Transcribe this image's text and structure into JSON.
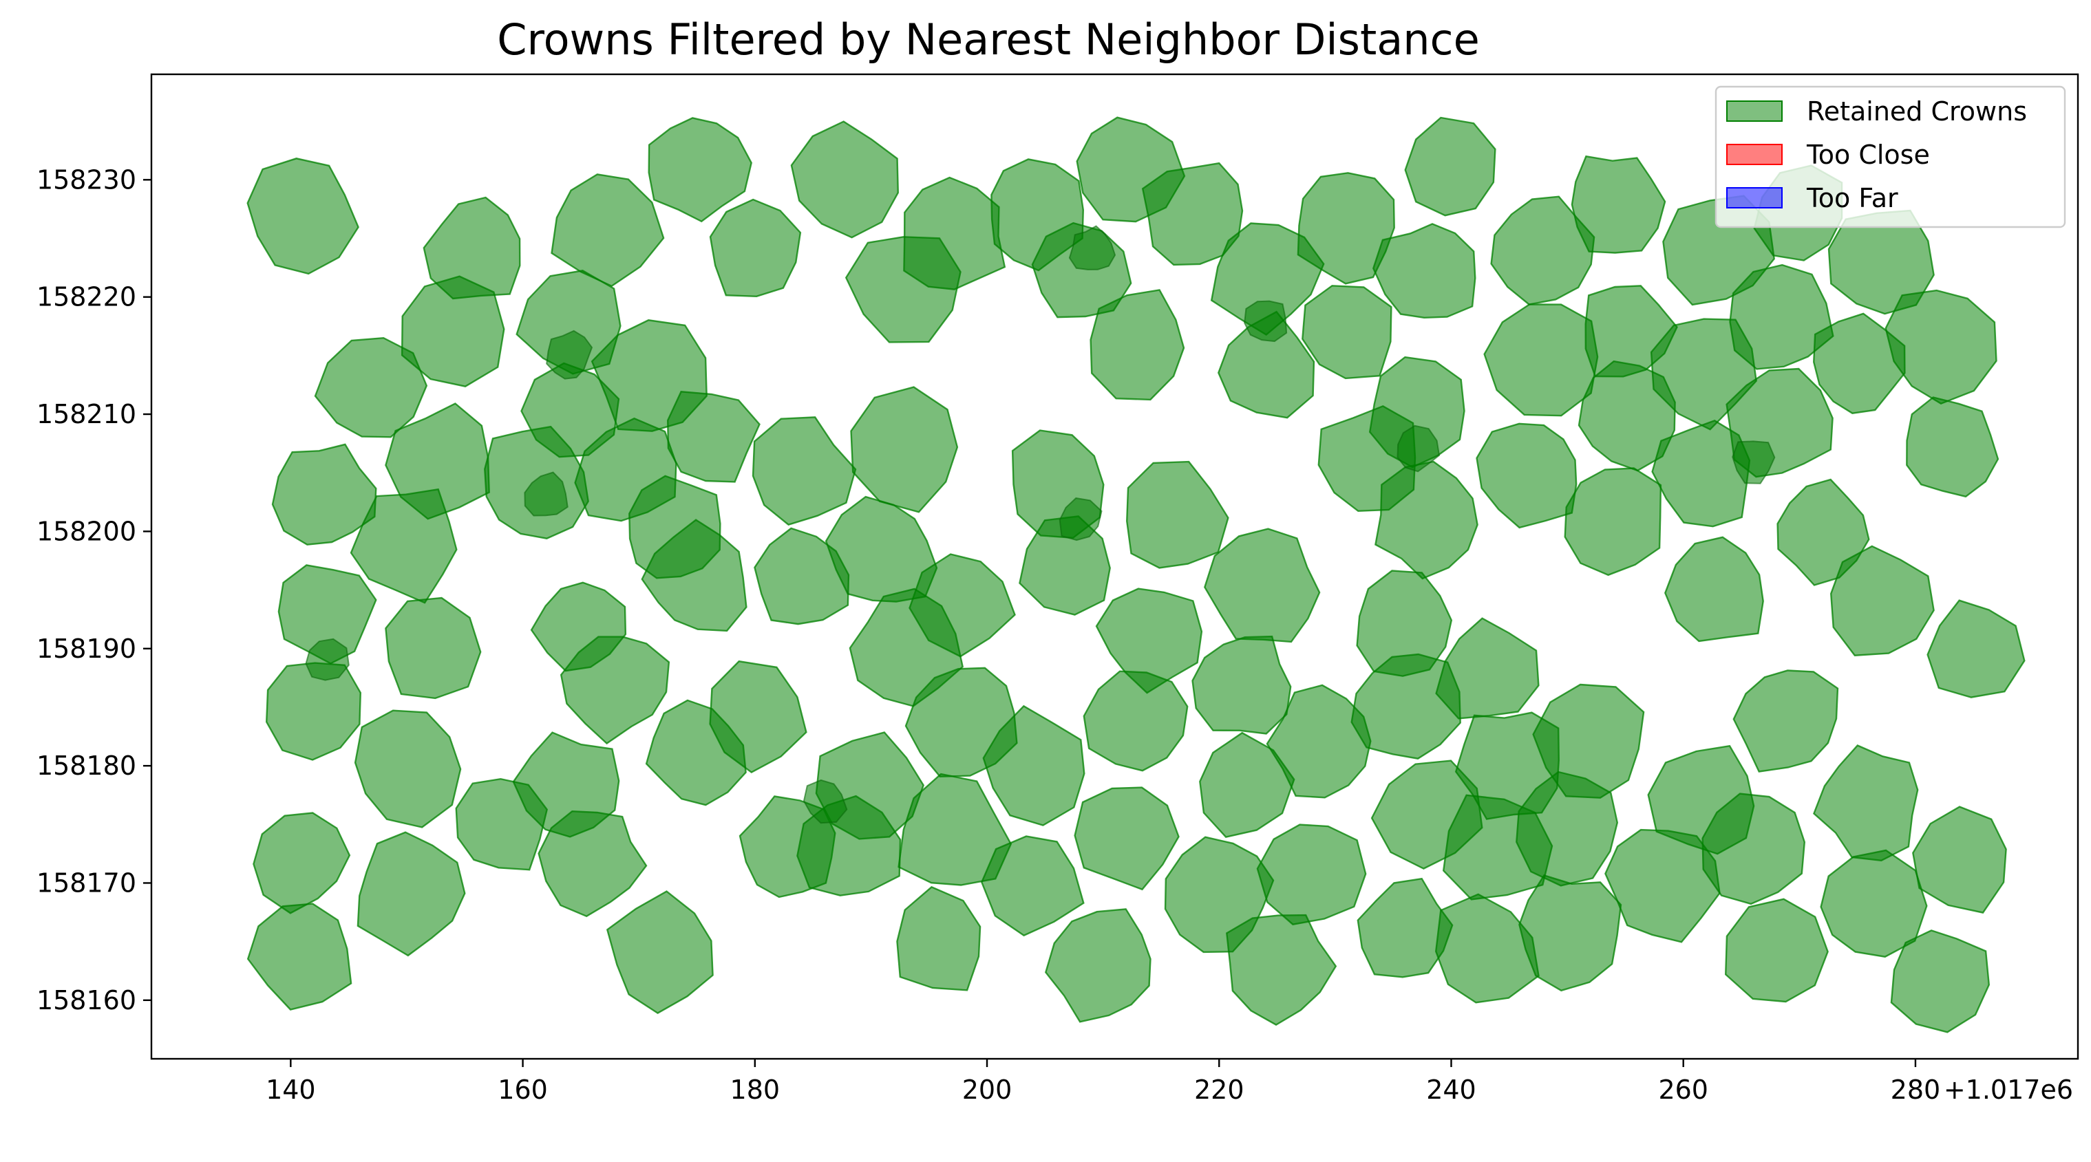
{
  "chart_data": {
    "type": "scatter",
    "title": "Crowns Filtered by Nearest Neighbor Distance",
    "xlabel": "",
    "ylabel": "",
    "x_offset_label": "+1.017e6",
    "xlim": [
      128,
      294
    ],
    "ylim": [
      158155,
      158239
    ],
    "x_ticks": [
      140,
      160,
      180,
      200,
      220,
      240,
      260,
      280
    ],
    "x_tick_labels": [
      "140",
      "160",
      "180",
      "200",
      "220",
      "240",
      "260",
      "280"
    ],
    "y_ticks": [
      158160,
      158170,
      158180,
      158190,
      158200,
      158210,
      158220,
      158230
    ],
    "y_tick_labels": [
      "158160",
      "158170",
      "158180",
      "158190",
      "158200",
      "158210",
      "158220",
      "158230"
    ],
    "grid": false,
    "legend_position": "top-right",
    "legend": [
      {
        "label": "Retained Crowns",
        "color": "#008000"
      },
      {
        "label": "Too Close",
        "color": "#ff0000"
      },
      {
        "label": "Too Far",
        "color": "#0000ff"
      }
    ],
    "series": [
      {
        "name": "Retained Crowns",
        "color": "#008000",
        "crown_centers": [
          [
            141,
            158227
          ],
          [
            156,
            158224
          ],
          [
            167,
            158226
          ],
          [
            175,
            158231
          ],
          [
            180,
            158224
          ],
          [
            188,
            158230
          ],
          [
            193,
            158221
          ],
          [
            197,
            158225
          ],
          [
            204,
            158227
          ],
          [
            208,
            158222
          ],
          [
            212,
            158231
          ],
          [
            218,
            158227
          ],
          [
            224,
            158222
          ],
          [
            231,
            158226
          ],
          [
            240,
            158231
          ],
          [
            238,
            158222
          ],
          [
            248,
            158224
          ],
          [
            254,
            158228
          ],
          [
            263,
            158224
          ],
          [
            270,
            158227
          ],
          [
            277,
            158223
          ],
          [
            282,
            158216
          ],
          [
            147,
            158212
          ],
          [
            154,
            158217
          ],
          [
            164,
            158218
          ],
          [
            171,
            158213
          ],
          [
            164,
            158210
          ],
          [
            176,
            158208
          ],
          [
            213,
            158216
          ],
          [
            224,
            158214
          ],
          [
            231,
            158217
          ],
          [
            237,
            158210
          ],
          [
            248,
            158215
          ],
          [
            255,
            158217
          ],
          [
            255,
            158210
          ],
          [
            262,
            158214
          ],
          [
            268,
            158218
          ],
          [
            275,
            158214
          ],
          [
            283,
            158207
          ],
          [
            143,
            158203
          ],
          [
            153,
            158206
          ],
          [
            161,
            158204
          ],
          [
            169,
            158205
          ],
          [
            184,
            158205
          ],
          [
            193,
            158207
          ],
          [
            206,
            158204
          ],
          [
            216,
            158201
          ],
          [
            233,
            158206
          ],
          [
            238,
            158201
          ],
          [
            247,
            158205
          ],
          [
            262,
            158205
          ],
          [
            268,
            158209
          ],
          [
            272,
            158200
          ],
          [
            254,
            158201
          ],
          [
            150,
            158199
          ],
          [
            143,
            158193
          ],
          [
            152,
            158190
          ],
          [
            165,
            158192
          ],
          [
            175,
            158196
          ],
          [
            173,
            158200
          ],
          [
            184,
            158196
          ],
          [
            191,
            158198
          ],
          [
            193,
            158190
          ],
          [
            198,
            158194
          ],
          [
            207,
            158197
          ],
          [
            214,
            158191
          ],
          [
            224,
            158195
          ],
          [
            236,
            158192
          ],
          [
            243,
            158188
          ],
          [
            263,
            158195
          ],
          [
            277,
            158194
          ],
          [
            285,
            158190
          ],
          [
            142,
            158185
          ],
          [
            150,
            158180
          ],
          [
            168,
            158187
          ],
          [
            175,
            158181
          ],
          [
            164,
            158178
          ],
          [
            180,
            158184
          ],
          [
            190,
            158178
          ],
          [
            198,
            158184
          ],
          [
            204,
            158180
          ],
          [
            213,
            158184
          ],
          [
            222,
            158187
          ],
          [
            222,
            158178
          ],
          [
            229,
            158182
          ],
          [
            236,
            158185
          ],
          [
            238,
            158176
          ],
          [
            245,
            158180
          ],
          [
            252,
            158182
          ],
          [
            262,
            158177
          ],
          [
            269,
            158184
          ],
          [
            276,
            158177
          ],
          [
            141,
            158172
          ],
          [
            158,
            158175
          ],
          [
            150,
            158169
          ],
          [
            166,
            158172
          ],
          [
            183,
            158173
          ],
          [
            188,
            158173
          ],
          [
            197,
            158174
          ],
          [
            204,
            158170
          ],
          [
            212,
            158174
          ],
          [
            220,
            158169
          ],
          [
            228,
            158171
          ],
          [
            244,
            158173
          ],
          [
            250,
            158175
          ],
          [
            258,
            158170
          ],
          [
            266,
            158173
          ],
          [
            276,
            158168
          ],
          [
            284,
            158172
          ],
          [
            141,
            158164
          ],
          [
            172,
            158164
          ],
          [
            196,
            158165
          ],
          [
            210,
            158163
          ],
          [
            225,
            158163
          ],
          [
            236,
            158166
          ],
          [
            243,
            158164
          ],
          [
            250,
            158166
          ],
          [
            268,
            158164
          ],
          [
            282,
            158162
          ]
        ]
      },
      {
        "name": "Too Close",
        "color": "#ff0000",
        "crown_centers": []
      },
      {
        "name": "Too Far",
        "color": "#0000ff",
        "crown_centers": []
      }
    ],
    "overlaps": [
      [
        143,
        158189
      ],
      [
        209,
        158224
      ],
      [
        208,
        158201
      ],
      [
        186,
        158177
      ],
      [
        237,
        158207
      ],
      [
        164,
        158215
      ],
      [
        224,
        158218
      ],
      [
        162,
        158203
      ],
      [
        266,
        158206
      ]
    ]
  }
}
